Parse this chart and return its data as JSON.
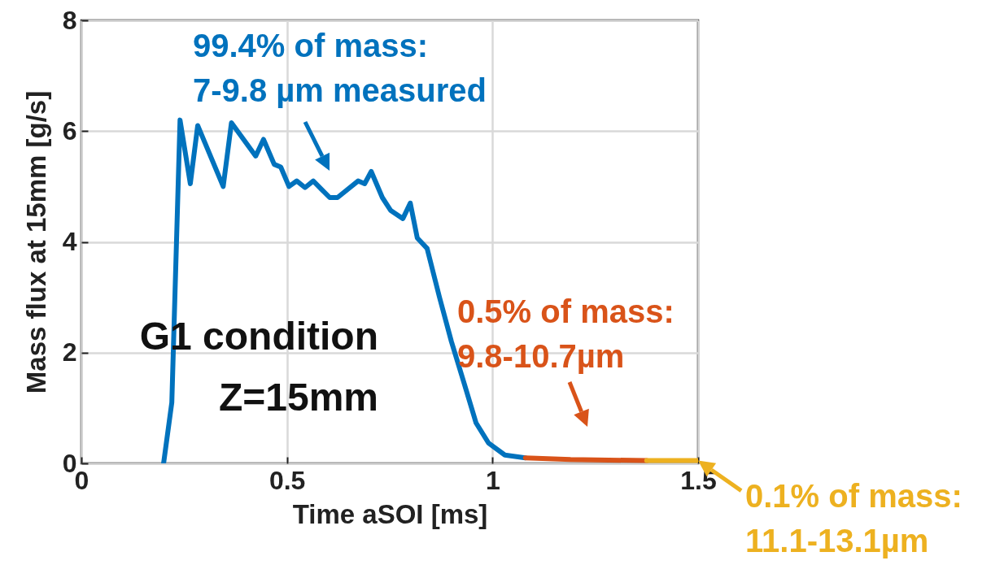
{
  "chart_data": {
    "type": "line",
    "xlabel": "Time aSOI [ms]",
    "ylabel": "Mass flux at 15mm [g/s]",
    "xlim": [
      0,
      1.5
    ],
    "ylim": [
      0,
      8
    ],
    "xticks": [
      0,
      0.5,
      1,
      1.5
    ],
    "yticks": [
      0,
      2,
      4,
      6,
      8
    ],
    "grid": true,
    "series": [
      {
        "color": "#0072bd",
        "x": [
          0.2,
          0.22,
          0.24,
          0.265,
          0.283,
          0.345,
          0.365,
          0.424,
          0.443,
          0.469,
          0.485,
          0.505,
          0.524,
          0.544,
          0.564,
          0.584,
          0.604,
          0.623,
          0.673,
          0.689,
          0.705,
          0.732,
          0.752,
          0.782,
          0.8,
          0.817,
          0.841,
          0.871,
          0.9,
          0.93,
          0.96,
          0.99,
          1.03,
          1.08
        ],
        "values": [
          0,
          1.1,
          6.2,
          5.05,
          6.1,
          5.0,
          6.15,
          5.55,
          5.85,
          5.4,
          5.35,
          5.0,
          5.1,
          4.98,
          5.1,
          4.95,
          4.8,
          4.8,
          5.1,
          5.05,
          5.27,
          4.8,
          4.57,
          4.42,
          4.7,
          4.07,
          3.88,
          3.0,
          2.2,
          1.47,
          0.73,
          0.37,
          0.15,
          0.1
        ]
      },
      {
        "color": "#d95319",
        "x": [
          1.08,
          1.19,
          1.375
        ],
        "values": [
          0.1,
          0.07,
          0.05
        ]
      },
      {
        "color": "#edb120",
        "x": [
          1.375,
          1.5
        ],
        "values": [
          0.05,
          0.05
        ]
      }
    ],
    "annotations": [
      "99.4% of mass:\n7-9.8 µm measured",
      "0.5% of mass:\n9.8-10.7µm",
      {
        "text": "0.1% of mass:\n11.1-13.1µm",
        "x": 1.5,
        "y": 0.05
      },
      "G1 condition\nZ=15mm"
    ]
  }
}
